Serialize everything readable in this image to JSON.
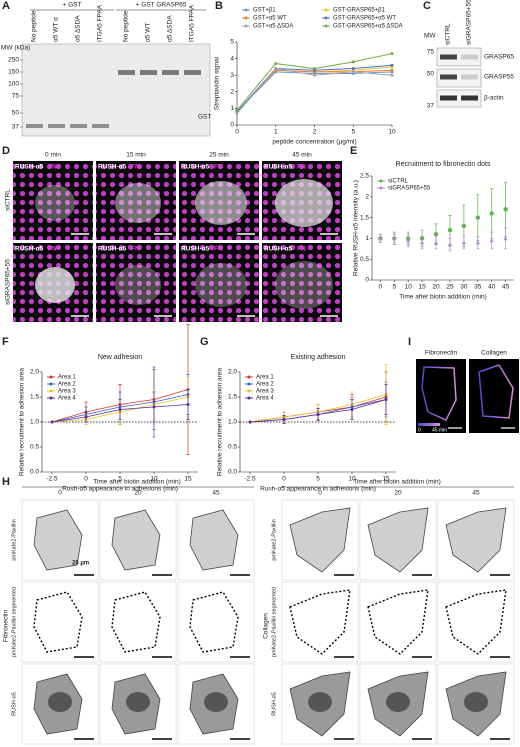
{
  "letters": [
    "A",
    "B",
    "C",
    "D",
    "E",
    "F",
    "G",
    "H",
    "I"
  ],
  "blot_a": {
    "groups": [
      "+ GST",
      "+ GST GRASP65"
    ],
    "lanes": [
      "No peptide",
      "α5 WT α",
      "α5 ΔSDA",
      "ITGA5 FPAA",
      "No peptide",
      "α5 WT",
      "α5 ΔSDA",
      "ITGA5 FPAA"
    ],
    "mw_label": "MW (kDa)",
    "markers": [
      250,
      150,
      100,
      75,
      50,
      37
    ],
    "band_label": "GST"
  },
  "blot_c": {
    "mw_label": "MW",
    "lanes": [
      "siCTRL",
      "siGRASP65+55"
    ],
    "bands": [
      "GRASP65",
      "GRASP55",
      "β-actin"
    ],
    "markers": [
      75,
      50,
      37
    ]
  },
  "panel_d": {
    "times": [
      "0 min",
      "15 min",
      "25 min",
      "45 min"
    ],
    "channels": [
      "RUSH-α5",
      "FN"
    ],
    "rows": [
      "siCTRL",
      "siGRASP65+55"
    ]
  },
  "panel_h": {
    "axis_title": "Time after biotin addition (min)",
    "times": [
      "0",
      "20",
      "45"
    ],
    "rows": [
      "pmKate2-Paxillin",
      "pmKate2-Paxillin segmented",
      "RUSH-α5"
    ],
    "groups": [
      "Fibronectin",
      "Collagen"
    ],
    "scale": "20 µm"
  },
  "panel_i": {
    "titles": [
      "Fibronectin",
      "Collagen"
    ],
    "scale_start": "0",
    "scale_end": "45 min"
  },
  "chart_data": [
    {
      "type": "line",
      "y_label": "Streptavidin signal",
      "x_label": "peptide concentration (µg/ml)",
      "categories": [
        "0",
        "1",
        "2",
        "5",
        "10"
      ],
      "ylim": [
        0,
        5
      ],
      "yticks": [
        0,
        1,
        2,
        3,
        4,
        5
      ],
      "legend": "above",
      "grid": false,
      "series": [
        {
          "name": "GST+β1",
          "color": "#5b9bd5",
          "values": [
            0.8,
            3.2,
            3.1,
            3.1,
            3.2
          ]
        },
        {
          "name": "GST-GRASP65+β1",
          "color": "#f2c230",
          "values": [
            0.8,
            3.3,
            3.2,
            3.3,
            3.5
          ]
        },
        {
          "name": "GST+α5 WT",
          "color": "#ed7d31",
          "values": [
            0.8,
            3.3,
            3.2,
            3.2,
            3.3
          ]
        },
        {
          "name": "GST-GRASP65+α5 WT",
          "color": "#4a6fc9",
          "values": [
            0.8,
            3.4,
            3.3,
            3.4,
            3.6
          ]
        },
        {
          "name": "GST+α5 ΔSDA",
          "color": "#a5a5a5",
          "values": [
            0.7,
            3.4,
            3.0,
            3.2,
            3.0
          ]
        },
        {
          "name": "GST-GRASP65+α5 ΔSDA",
          "color": "#70ad47",
          "values": [
            0.9,
            3.7,
            3.4,
            3.8,
            4.3
          ]
        }
      ]
    },
    {
      "type": "errorline",
      "title": "Recruitment to fibronectin dots",
      "y_label": "Relative RUSH-α5 intensity (a.u.)",
      "x_label": "Time after biotin addition (min)",
      "x": [
        0,
        5,
        10,
        15,
        20,
        25,
        30,
        35,
        40,
        45
      ],
      "xlim": [
        -3,
        48
      ],
      "xticks": [
        0,
        5,
        10,
        15,
        20,
        25,
        30,
        35,
        40,
        45
      ],
      "ylim": [
        0,
        2.5
      ],
      "yticks": [
        0,
        0.5,
        1,
        1.5,
        2,
        2.5
      ],
      "legend": "top-left",
      "grid": false,
      "series": [
        {
          "name": "siCTRL",
          "color": "#5fb548",
          "values": [
            1.0,
            1.0,
            1.0,
            1.0,
            1.1,
            1.2,
            1.3,
            1.5,
            1.6,
            1.7
          ],
          "errors": [
            0.1,
            0.15,
            0.15,
            0.2,
            0.25,
            0.35,
            0.5,
            0.55,
            0.6,
            0.65
          ]
        },
        {
          "name": "siGRASP65+55",
          "color": "#b48ad6",
          "values": [
            1.0,
            1.0,
            0.95,
            0.9,
            0.9,
            0.85,
            0.9,
            0.9,
            0.95,
            1.0
          ],
          "errors": [
            0.1,
            0.1,
            0.15,
            0.15,
            0.15,
            0.15,
            0.15,
            0.15,
            0.2,
            0.25
          ]
        }
      ]
    },
    {
      "type": "errorline",
      "title": "New adhesion",
      "y_label": "Relative recruitment to adhesion area",
      "x_label": "Rush-α5 appearance in adhesions (min)",
      "categories": [
        "-2.5",
        "0",
        "5",
        "10",
        "15"
      ],
      "ylim": [
        0,
        2
      ],
      "yticks": [
        {
          "value": 0,
          "label": "0.0"
        },
        0.5,
        {
          "value": 1,
          "label": "1.0"
        },
        1.5,
        {
          "value": 2,
          "label": "2.0"
        }
      ],
      "hline": 1,
      "legend": "top-left",
      "grid": false,
      "series": [
        {
          "name": "Area 1",
          "color": "#d9332b",
          "values": [
            1.0,
            1.2,
            1.35,
            1.45,
            1.65
          ],
          "errors": [
            0,
            0.2,
            0.4,
            0.6,
            1.3
          ]
        },
        {
          "name": "Area 2",
          "color": "#3a5fcd",
          "values": [
            1.0,
            1.15,
            1.3,
            1.4,
            1.55
          ],
          "errors": [
            0,
            0.15,
            0.3,
            0.7,
            0.4
          ]
        },
        {
          "name": "Area 3",
          "color": "#e6c21e",
          "values": [
            1.0,
            1.05,
            1.2,
            1.35,
            1.5
          ],
          "errors": [
            0,
            0.1,
            0.25,
            0.3,
            0.4
          ]
        },
        {
          "name": "Area 4",
          "color": "#5b2a9e",
          "values": [
            1.0,
            1.1,
            1.25,
            1.3,
            1.35
          ],
          "errors": [
            0,
            0.1,
            0.2,
            0.3,
            0.3
          ]
        }
      ]
    },
    {
      "type": "errorline",
      "title": "Existing adhesion",
      "y_label": "Relative recruitment to adhesion area",
      "x_label": "Rush-α5 appearance in adhesions (min)",
      "categories": [
        "-2.5",
        "0",
        "5",
        "10",
        "15"
      ],
      "ylim": [
        0,
        2
      ],
      "yticks": [
        {
          "value": 0,
          "label": "0.0"
        },
        0.5,
        {
          "value": 1,
          "label": "1.0"
        },
        1.5,
        {
          "value": 2,
          "label": "2.0"
        }
      ],
      "hline": 1,
      "legend": "top-left",
      "grid": false,
      "series": [
        {
          "name": "Area 1",
          "color": "#d9332b",
          "values": [
            1.0,
            1.1,
            1.2,
            1.3,
            1.5
          ],
          "errors": [
            0,
            0.1,
            0.15,
            0.25,
            0.5
          ]
        },
        {
          "name": "Area 2",
          "color": "#3a5fcd",
          "values": [
            1.0,
            1.05,
            1.15,
            1.3,
            1.45
          ],
          "errors": [
            0,
            0.08,
            0.12,
            0.2,
            0.35
          ]
        },
        {
          "name": "Area 3",
          "color": "#e6c21e",
          "values": [
            1.0,
            1.1,
            1.2,
            1.35,
            1.55
          ],
          "errors": [
            0,
            0.1,
            0.15,
            0.25,
            0.6
          ]
        },
        {
          "name": "Area 4",
          "color": "#5b2a9e",
          "values": [
            1.0,
            1.05,
            1.15,
            1.25,
            1.45
          ],
          "errors": [
            0,
            0.08,
            0.12,
            0.2,
            0.3
          ]
        }
      ]
    }
  ]
}
